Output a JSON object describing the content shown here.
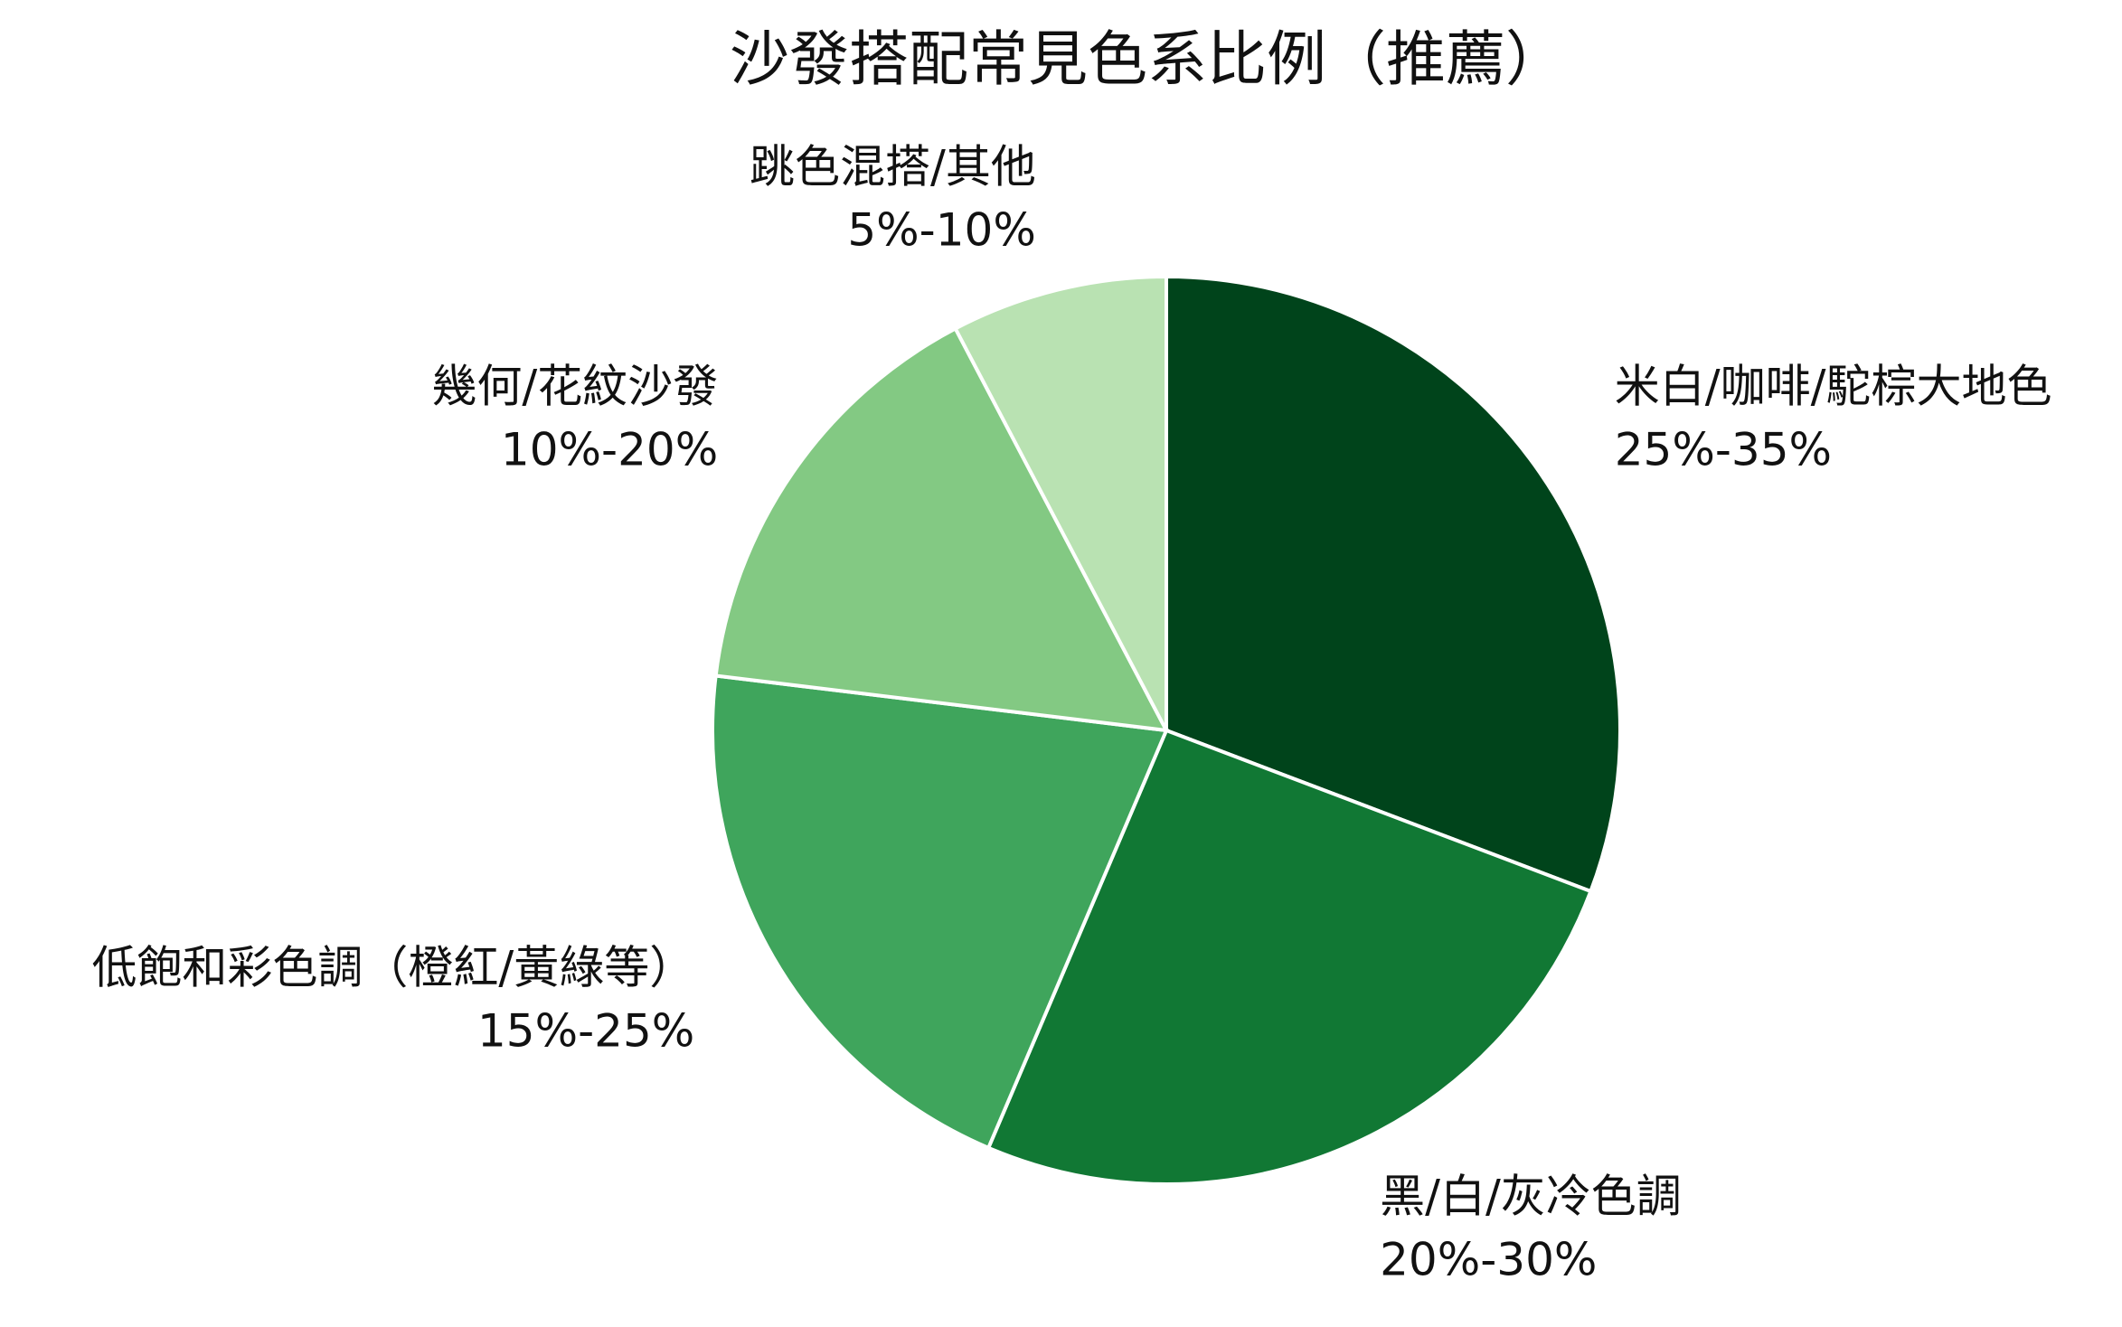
{
  "chart_data": {
    "type": "pie",
    "title": "沙發搭配常見色系比例（推薦）",
    "categories": [
      "米白/咖啡/駝棕大地色",
      "黑/白/灰冷色調",
      "低飽和彩色調（橙紅/黃綠等）",
      "幾何/花紋沙發",
      "跳色混搭/其他"
    ],
    "ranges": [
      "25%-35%",
      "20%-30%",
      "15%-25%",
      "10%-20%",
      "5%-10%"
    ],
    "values": [
      30,
      25,
      20,
      15,
      7.5
    ],
    "colors": [
      "#00441b",
      "#117834",
      "#3fa55c",
      "#83c983",
      "#b9e2b2"
    ]
  }
}
